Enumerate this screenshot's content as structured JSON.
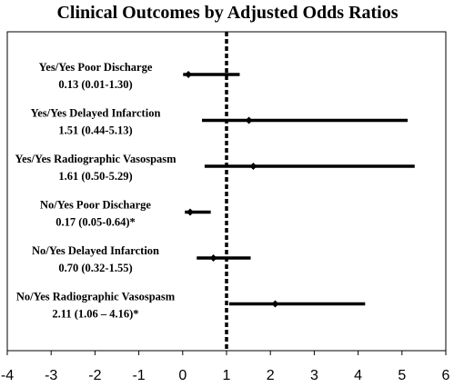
{
  "chart_data": {
    "type": "forest",
    "title": "Clinical Outcomes by Adjusted Odds Ratios",
    "xlabel": "",
    "ylabel": "",
    "xlim": [
      -4,
      6
    ],
    "xticks": [
      "-4",
      "-3",
      "-2",
      "-1",
      "0",
      "1",
      "2",
      "3",
      "4",
      "5",
      "6"
    ],
    "reference_line": 1,
    "grid": false,
    "rows": [
      {
        "name": "Yes/Yes Poor Discharge",
        "ci_text": "0.13 (0.01-1.30)",
        "estimate": 0.13,
        "lower": 0.01,
        "upper": 1.3
      },
      {
        "name": "Yes/Yes Delayed Infarction",
        "ci_text": "1.51 (0.44-5.13)",
        "estimate": 1.51,
        "lower": 0.44,
        "upper": 5.13
      },
      {
        "name": "Yes/Yes Radiographic Vasospasm",
        "ci_text": "1.61 (0.50-5.29)",
        "estimate": 1.61,
        "lower": 0.5,
        "upper": 5.29
      },
      {
        "name": "No/Yes Poor Discharge",
        "ci_text": "0.17 (0.05-0.64)*",
        "estimate": 0.17,
        "lower": 0.05,
        "upper": 0.64
      },
      {
        "name": "No/Yes Delayed Infarction",
        "ci_text": "0.70 (0.32-1.55)",
        "estimate": 0.7,
        "lower": 0.32,
        "upper": 1.55
      },
      {
        "name": "No/Yes Radiographic Vasospasm",
        "ci_text": "2.11 (1.06 – 4.16)*",
        "estimate": 2.11,
        "lower": 1.06,
        "upper": 4.16
      }
    ]
  }
}
